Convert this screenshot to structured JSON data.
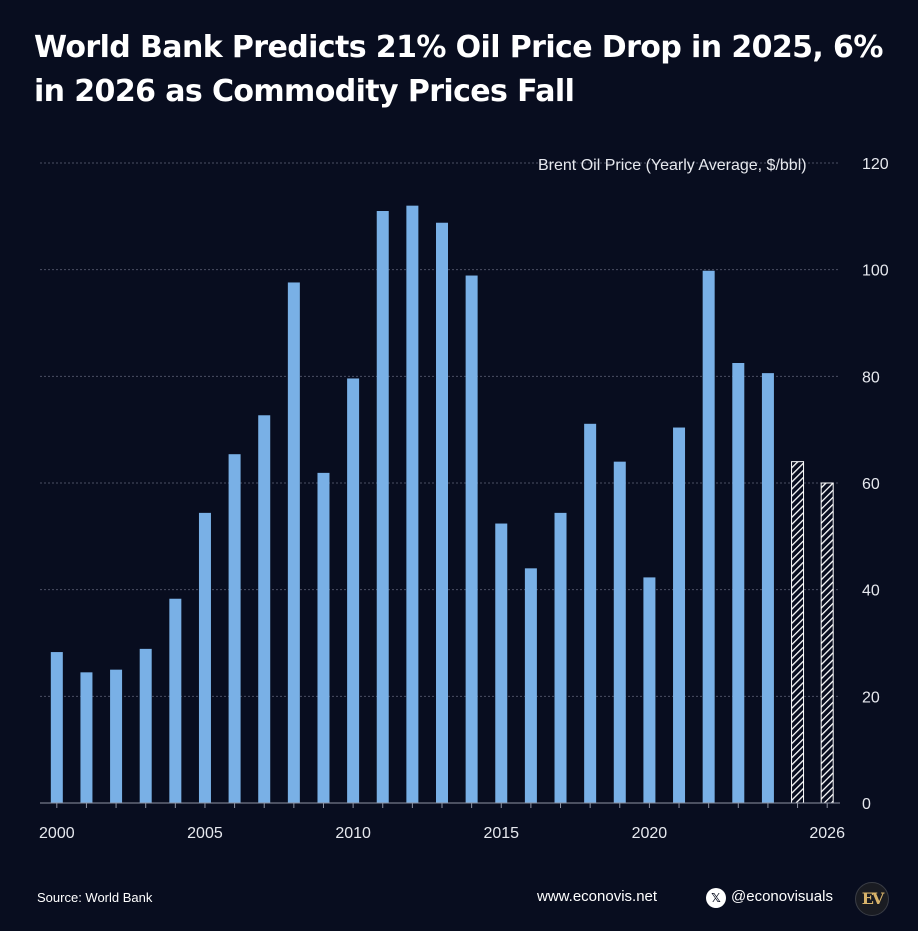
{
  "header": {
    "title": "World Bank Predicts 21% Oil Price Drop in 2025, 6% in 2026 as Commodity Prices Fall"
  },
  "chart_data": {
    "type": "bar",
    "title": "World Bank Predicts 21% Oil Price Drop in 2025, 6% in 2026 as Commodity Prices Fall",
    "ylabel": "Brent Oil Price (Yearly Average, $/bbl)",
    "xlabel": "",
    "ylim": [
      0,
      120
    ],
    "yticks": [
      "0",
      "20",
      "40",
      "60",
      "80",
      "100",
      "120"
    ],
    "xticks": [
      "2000",
      "2005",
      "2010",
      "2015",
      "2020",
      "2026"
    ],
    "categories": [
      "2000",
      "2001",
      "2002",
      "2003",
      "2004",
      "2005",
      "2006",
      "2007",
      "2008",
      "2009",
      "2010",
      "2011",
      "2012",
      "2013",
      "2014",
      "2015",
      "2016",
      "2017",
      "2018",
      "2019",
      "2020",
      "2021",
      "2022",
      "2023",
      "2024",
      "2025",
      "2026"
    ],
    "values": [
      28.3,
      24.5,
      25.0,
      28.9,
      38.3,
      54.4,
      65.4,
      72.7,
      97.6,
      61.9,
      79.6,
      111.0,
      112.0,
      108.8,
      98.9,
      52.4,
      44.0,
      54.4,
      71.1,
      64.0,
      42.3,
      70.4,
      99.8,
      82.5,
      80.6,
      64.0,
      60.0
    ],
    "forecast": [
      false,
      false,
      false,
      false,
      false,
      false,
      false,
      false,
      false,
      false,
      false,
      false,
      false,
      false,
      false,
      false,
      false,
      false,
      false,
      false,
      false,
      false,
      false,
      false,
      false,
      true,
      true
    ],
    "grid": true,
    "colors": {
      "bar": "#79b0e6",
      "forecast_stripe": "#ffffff",
      "background": "#080d1f",
      "grid": "#4a4f63",
      "axis": "#8e93a3",
      "text": "#ffffff"
    }
  },
  "footer": {
    "source": "Source: World Bank",
    "website": "www.econovis.net",
    "x_icon_glyph": "𝕏",
    "handle": "@econovisuals",
    "logo_text": "EV"
  }
}
